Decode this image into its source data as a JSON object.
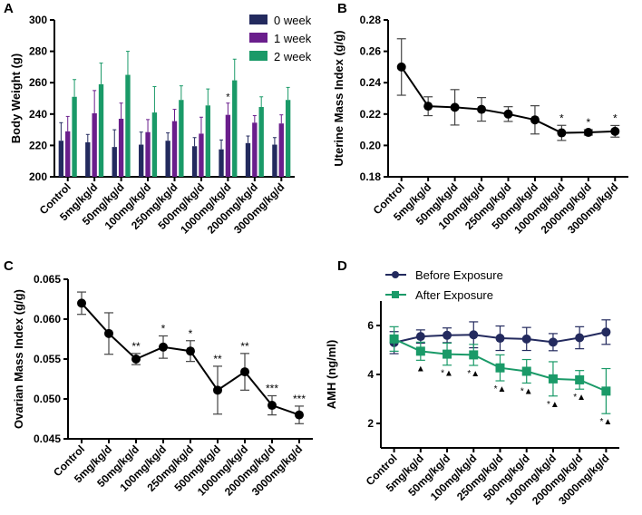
{
  "categories": [
    "Control",
    "5mg/kg/d",
    "50mg/kg/d",
    "100mg/kg/d",
    "250mg/kg/d",
    "500mg/kg/d",
    "1000mg/kg/d",
    "2000mg/kg/d",
    "3000mg/kg/d"
  ],
  "chart_data": [
    {
      "panel": "A",
      "type": "bar",
      "ylabel": "Body Weight (g)",
      "ylim": [
        200,
        300
      ],
      "yticks": [
        200,
        220,
        240,
        260,
        280,
        300
      ],
      "legend": "top-right",
      "series": [
        {
          "name": "0 week",
          "color": "#232a5e",
          "values": [
            223,
            222,
            219,
            220.5,
            223,
            219.5,
            217.5,
            221.5,
            220.5
          ],
          "errors": [
            11.5,
            5,
            11,
            8,
            5,
            5.5,
            6,
            4.5,
            4.5
          ],
          "annotations": [
            "",
            "",
            "",
            "",
            "",
            "",
            "",
            "",
            ""
          ]
        },
        {
          "name": "1 week",
          "color": "#6a1e8c",
          "values": [
            229,
            240.5,
            237,
            228.5,
            235.5,
            227.5,
            239.5,
            234.5,
            234
          ],
          "errors": [
            9.5,
            14.5,
            10,
            8,
            7.5,
            10.5,
            7.5,
            4.5,
            5.5
          ],
          "annotations": [
            "",
            "",
            "",
            "",
            "",
            "",
            "*",
            "",
            ""
          ]
        },
        {
          "name": "2 week",
          "color": "#1a9a68",
          "values": [
            251,
            259,
            265,
            241,
            249,
            245.5,
            261.5,
            244.5,
            249
          ],
          "errors": [
            11,
            13.5,
            15,
            16.5,
            9,
            10.5,
            13.5,
            6.5,
            8
          ],
          "annotations": [
            "",
            "",
            "",
            "",
            "",
            "",
            "",
            "",
            ""
          ]
        }
      ]
    },
    {
      "panel": "B",
      "type": "line",
      "ylabel": "Uterine Mass Index (g/g)",
      "ylim": [
        0.18,
        0.28
      ],
      "yticks": [
        "0.18",
        "0.20",
        "0.22",
        "0.24",
        "0.26",
        "0.28"
      ],
      "series": [
        {
          "color": "#000000",
          "marker": "circle",
          "values": [
            0.25,
            0.225,
            0.2243,
            0.223,
            0.22,
            0.2163,
            0.208,
            0.2083,
            0.209
          ],
          "errors": [
            0.018,
            0.006,
            0.0113,
            0.0075,
            0.0047,
            0.009,
            0.0048,
            0.0017,
            0.0037
          ],
          "annotations": [
            "",
            "",
            "",
            "",
            "",
            "",
            "*",
            "*",
            "*"
          ]
        }
      ]
    },
    {
      "panel": "C",
      "type": "line",
      "ylabel": "Ovarian Mass Index (g/g)",
      "ylim": [
        0.045,
        0.065
      ],
      "yticks": [
        "0.045",
        "0.050",
        "0.055",
        "0.060",
        "0.065"
      ],
      "series": [
        {
          "color": "#000000",
          "marker": "circle",
          "values": [
            0.062,
            0.0582,
            0.055,
            0.0565,
            0.056,
            0.0511,
            0.0534,
            0.0492,
            0.048
          ],
          "errors": [
            0.0014,
            0.0026,
            0.0007,
            0.0014,
            0.0013,
            0.003,
            0.0023,
            0.0012,
            0.0011
          ],
          "annotations": [
            "",
            "",
            "**",
            "*",
            "*",
            "**",
            "**",
            "***",
            "***"
          ]
        }
      ]
    },
    {
      "panel": "D",
      "type": "line",
      "ylabel": "AMH (ng/ml)",
      "ylim": [
        1,
        7
      ],
      "yticks": [
        "2",
        "4",
        "6"
      ],
      "legend": "top",
      "series": [
        {
          "name": "Before Exposure",
          "color": "#232a5e",
          "marker": "circle",
          "values": [
            5.3,
            5.55,
            5.6,
            5.62,
            5.48,
            5.45,
            5.32,
            5.5,
            5.73
          ],
          "errors": [
            0.45,
            0.27,
            0.3,
            0.53,
            0.5,
            0.47,
            0.35,
            0.45,
            0.5
          ],
          "annotations": [
            "",
            "",
            "",
            "",
            "",
            "",
            "",
            "",
            ""
          ]
        },
        {
          "name": "After Exposure",
          "color": "#1a9a68",
          "marker": "square",
          "values": [
            5.45,
            4.95,
            4.83,
            4.8,
            4.27,
            4.13,
            3.82,
            3.78,
            3.32
          ],
          "errors": [
            0.5,
            0.37,
            0.45,
            0.43,
            0.53,
            0.48,
            0.7,
            0.38,
            0.92
          ],
          "annotations": [
            "",
            "▲",
            "*▲",
            "*▲",
            "*▲",
            "*▲",
            "*▲",
            "*▲",
            "*▲"
          ]
        }
      ]
    }
  ]
}
